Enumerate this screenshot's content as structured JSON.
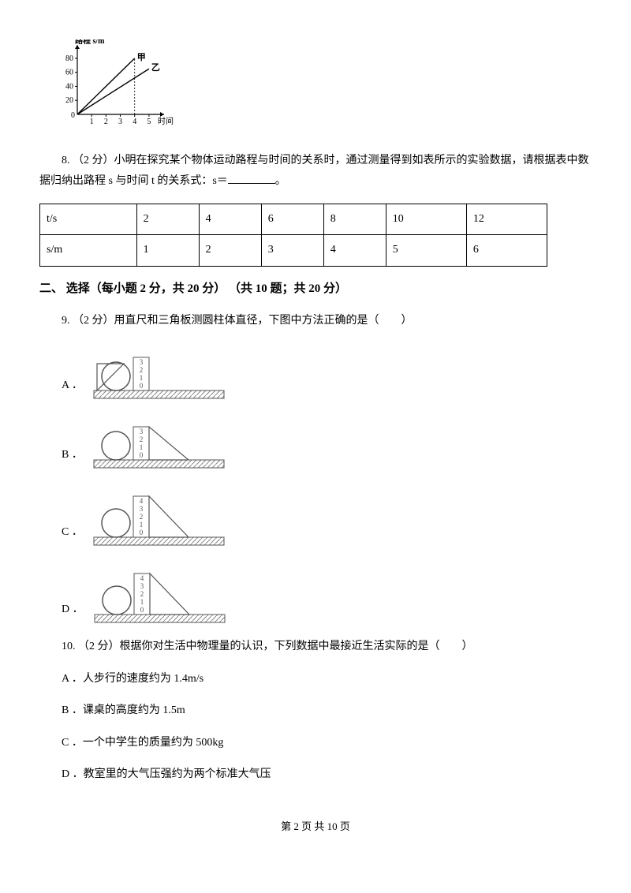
{
  "chart1": {
    "width": 150,
    "height": 110,
    "ylabel": "路程 s/m",
    "xlabel": "时间 t/s",
    "y_ticks": [
      0,
      20,
      40,
      60,
      80
    ],
    "x_ticks": [
      0,
      1,
      2,
      3,
      4,
      5
    ],
    "lines": [
      {
        "label": "甲",
        "points": [
          [
            0,
            0
          ],
          [
            4,
            80
          ]
        ],
        "color": "#000"
      },
      {
        "label": "乙",
        "points": [
          [
            0,
            0
          ],
          [
            5,
            65
          ]
        ],
        "color": "#000"
      }
    ],
    "axis_color": "#000",
    "font_size": 10
  },
  "q8": {
    "text_before": "8. （2 分）小明在探究某个物体运动路程与时间的关系时，通过测量得到如表所示的实验数据，请根据表中数据归纳出路程 s 与时间 t 的关系式：s＝",
    "text_after": "。"
  },
  "table8": {
    "rows": [
      [
        "t/s",
        "2",
        "4",
        "6",
        "8",
        "10",
        "12"
      ],
      [
        "s/m",
        "1",
        "2",
        "3",
        "4",
        "5",
        "6"
      ]
    ]
  },
  "section2": {
    "title": "二、 选择（每小题 2 分，共 20 分） （共 10 题；共 20 分）"
  },
  "q9": {
    "text": "9. （2 分）用直尺和三角板测圆柱体直径，下图中方法正确的是（　　）",
    "options": [
      "A ．",
      "B ．",
      "C ．",
      "D ．"
    ],
    "diagrams": [
      {
        "ticks": [
          "3",
          "2",
          "1",
          "0"
        ],
        "tri_offset_x": 6,
        "tri_flip": false,
        "ruler_at_0": true
      },
      {
        "ticks": [
          "3",
          "2",
          "1",
          "0"
        ],
        "tri_offset_x": 46,
        "tri_flip": true,
        "ruler_at_0": true
      },
      {
        "ticks": [
          "4",
          "3",
          "2",
          "1",
          "0"
        ],
        "tri_offset_x": 46,
        "tri_flip": true,
        "ruler_at_0": true
      },
      {
        "ticks": [
          "4",
          "3",
          "2",
          "1",
          "0"
        ],
        "tri_offset_x": 46,
        "tri_flip": true,
        "ruler_at_0": false
      }
    ]
  },
  "q10": {
    "text": "10. （2 分）根据你对生活中物理量的认识，下列数据中最接近生活实际的是（　　）",
    "options": {
      "A": "A ．人步行的速度约为 1.4m/s",
      "B": "B ．课桌的高度约为 1.5m",
      "C": "C ．一个中学生的质量约为 500kg",
      "D": "D ．教室里的大气压强约为两个标准大气压"
    }
  },
  "footer": "第 2 页 共 10 页"
}
